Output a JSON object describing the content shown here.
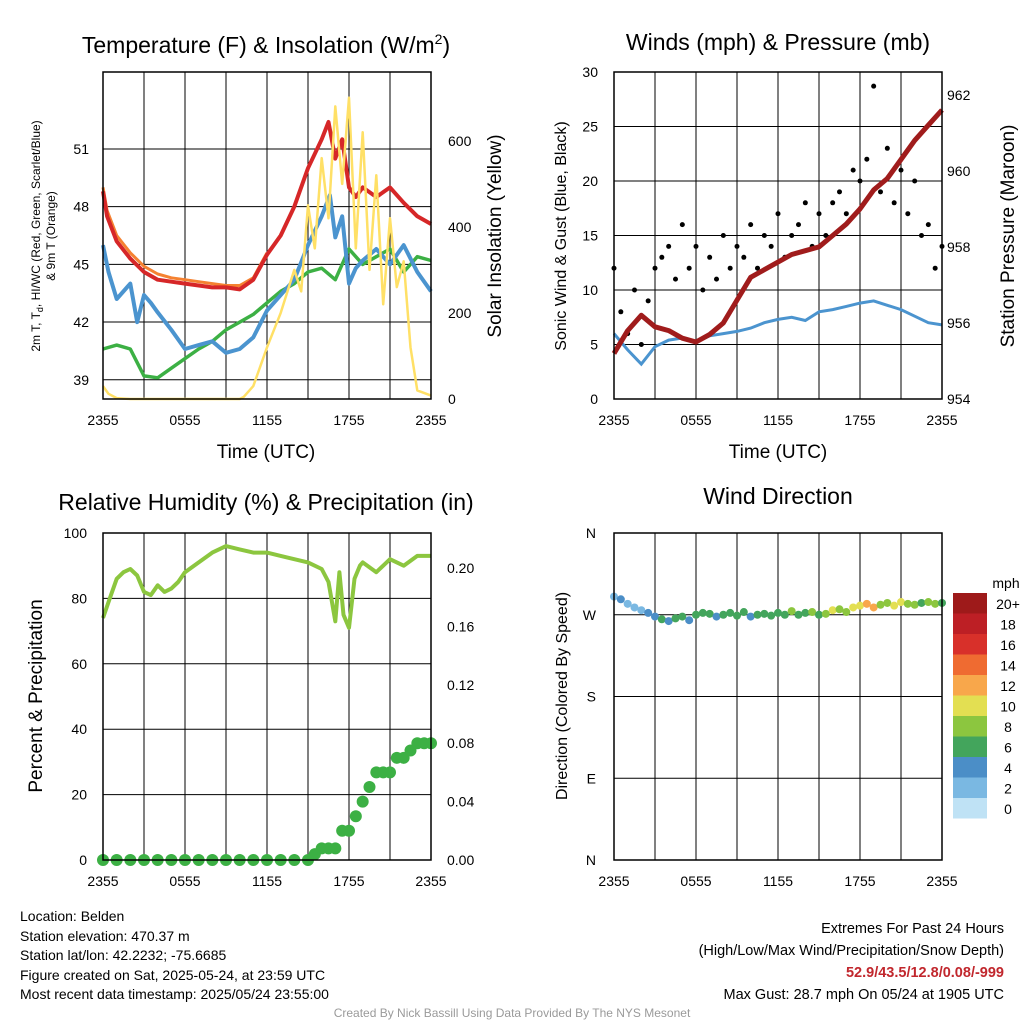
{
  "panels": {
    "temperature": {
      "title": "Temperature (F) & Insolation (W/m",
      "title_sup": "2",
      "title_close": ")",
      "xlabel": "Time (UTC)",
      "ylabel_line1": "2m T, T",
      "ylabel_sub": "d",
      "ylabel_line1_rest": ", HI/WC (Red, Green, Scarlet/Blue)",
      "ylabel_line2": "& 9m T (Orange)",
      "ylabel_right": "Solar Insolation (Yellow)"
    },
    "winds": {
      "title": "Winds (mph) & Pressure (mb)",
      "xlabel": "Time (UTC)",
      "ylabel": "Sonic Wind & Gust (Blue, Black)",
      "ylabel_right": "Station Pressure (Maroon)"
    },
    "humidity": {
      "title": "Relative Humidity (%) & Precipitation (in)",
      "ylabel": "Percent & Precipitation"
    },
    "direction": {
      "title": "Wind Direction",
      "ylabel": "Direction (Colored By Speed)",
      "legend_title": "mph"
    }
  },
  "chart_data": [
    {
      "id": "temperature",
      "type": "line",
      "x_tick_labels": [
        "2355",
        "0555",
        "1155",
        "1755",
        "2355"
      ],
      "x_hours_range": [
        0,
        24
      ],
      "ylim": [
        38,
        55
      ],
      "y_ticks": [
        39,
        42,
        45,
        48,
        51
      ],
      "y2lim": [
        0,
        760
      ],
      "y2_ticks": [
        0,
        200,
        400,
        600
      ],
      "series": [
        {
          "label": "Temperature",
          "color": "#d62728",
          "axis": "left",
          "width": 4,
          "x": [
            0,
            0.3,
            1,
            2,
            3,
            4,
            5,
            6,
            7,
            8,
            9,
            10,
            11,
            12,
            13,
            14,
            15,
            16,
            16.5,
            17,
            17.5,
            18,
            18.5,
            19,
            20,
            21,
            22,
            23,
            24
          ],
          "values": [
            48.8,
            47.5,
            46.2,
            45.3,
            44.6,
            44.2,
            44.1,
            44.0,
            43.9,
            43.8,
            43.8,
            43.7,
            44.2,
            45.5,
            46.5,
            48.0,
            50.0,
            51.5,
            52.4,
            50.5,
            51.5,
            49.0,
            48.5,
            49.0,
            48.5,
            49.0,
            48.2,
            47.5,
            47.1
          ]
        },
        {
          "label": "9m Temperature",
          "color": "#f58231",
          "axis": "left",
          "width": 3,
          "x": [
            0,
            0.3,
            1,
            2,
            3,
            4,
            5,
            6,
            7,
            8,
            9,
            10,
            11,
            12
          ],
          "values": [
            49.0,
            47.8,
            46.5,
            45.6,
            44.9,
            44.5,
            44.3,
            44.2,
            44.1,
            44.0,
            43.9,
            43.9,
            44.3,
            45.6
          ]
        },
        {
          "label": "Dew Point",
          "color": "#3cb044",
          "axis": "left",
          "width": 3.5,
          "x": [
            0,
            1,
            2,
            3,
            4,
            5,
            6,
            7,
            8,
            9,
            10,
            11,
            12,
            13,
            14,
            15,
            16,
            17,
            18,
            19,
            20,
            21,
            22,
            23,
            24
          ],
          "values": [
            40.6,
            40.8,
            40.6,
            39.2,
            39.1,
            39.6,
            40.1,
            40.6,
            41.0,
            41.6,
            42.0,
            42.4,
            43.0,
            43.6,
            44.0,
            44.6,
            44.8,
            44.2,
            45.8,
            45.0,
            45.4,
            45.8,
            44.6,
            45.4,
            45.2
          ]
        },
        {
          "label": "Heat Index / Wind Chill",
          "color": "#4b94cf",
          "axis": "left",
          "width": 4,
          "x": [
            0,
            0.4,
            1,
            2,
            2.5,
            3,
            3.5,
            4,
            5,
            6,
            7,
            8,
            9,
            10,
            11,
            12,
            13,
            14,
            15,
            16,
            16.6,
            17,
            17.5,
            18,
            18.5,
            19,
            20,
            21,
            22,
            23,
            24
          ],
          "values": [
            46.0,
            44.6,
            43.2,
            44.0,
            42.0,
            43.4,
            43.0,
            42.5,
            41.6,
            40.6,
            40.8,
            41.0,
            40.4,
            40.6,
            41.2,
            42.6,
            43.4,
            44.2,
            46.0,
            47.5,
            48.6,
            46.4,
            47.5,
            44.0,
            44.8,
            45.2,
            45.8,
            45.0,
            46.0,
            44.6,
            43.6
          ]
        },
        {
          "label": "Solar Insolation",
          "color": "#ffe066",
          "axis": "right",
          "width": 2.5,
          "x": [
            0,
            0.4,
            1,
            2,
            3,
            4,
            5,
            6,
            7,
            8,
            9,
            10,
            10.3,
            11,
            12,
            13,
            14,
            14.5,
            15,
            15.5,
            16,
            16.5,
            17,
            17.5,
            18,
            18.5,
            19,
            19.5,
            20,
            20.5,
            21,
            21.5,
            22,
            22.5,
            23,
            24
          ],
          "values": [
            30,
            12,
            2,
            0,
            0,
            0,
            0,
            0,
            0,
            0,
            0,
            0,
            5,
            30,
            120,
            200,
            300,
            250,
            450,
            350,
            560,
            420,
            680,
            500,
            700,
            350,
            620,
            300,
            520,
            220,
            420,
            260,
            320,
            120,
            20,
            8
          ]
        }
      ]
    },
    {
      "id": "winds",
      "type": "line",
      "x_tick_labels": [
        "2355",
        "0555",
        "1155",
        "1755",
        "2355"
      ],
      "x_hours_range": [
        0,
        24
      ],
      "ylim": [
        0,
        30
      ],
      "y_ticks": [
        0,
        5,
        10,
        15,
        20,
        25,
        30
      ],
      "y2lim": [
        954,
        962.6
      ],
      "y2_ticks": [
        954,
        956,
        958,
        960,
        962
      ],
      "series": [
        {
          "label": "Sonic Wind",
          "color": "#4b94cf",
          "axis": "left",
          "width": 3,
          "x": [
            0,
            1,
            2,
            3,
            4,
            5,
            6,
            7,
            8,
            9,
            10,
            11,
            12,
            13,
            14,
            15,
            16,
            17,
            18,
            19,
            20,
            21,
            22,
            23,
            24
          ],
          "values": [
            6.0,
            4.5,
            3.2,
            4.8,
            5.4,
            5.6,
            5.2,
            5.8,
            6.0,
            6.2,
            6.5,
            7.0,
            7.3,
            7.5,
            7.2,
            8.0,
            8.2,
            8.5,
            8.8,
            9.0,
            8.6,
            8.2,
            7.6,
            7.0,
            6.8
          ]
        },
        {
          "label": "Gust",
          "color": "#000000",
          "axis": "left",
          "style": "points",
          "x": [
            0,
            0.5,
            1,
            1.5,
            2,
            2.5,
            3,
            3.5,
            4,
            4.5,
            5,
            5.5,
            6,
            6.5,
            7,
            7.5,
            8,
            8.5,
            9,
            9.5,
            10,
            10.5,
            11,
            11.5,
            12,
            12.5,
            13,
            13.5,
            14,
            14.5,
            15,
            15.5,
            16,
            16.5,
            17,
            17.5,
            18,
            18.5,
            19,
            19.5,
            20,
            20.5,
            21,
            21.5,
            22,
            22.5,
            23,
            23.5,
            24
          ],
          "values": [
            12,
            8,
            6,
            10,
            5,
            9,
            12,
            13,
            14,
            11,
            16,
            12,
            14,
            10,
            13,
            11,
            15,
            12,
            14,
            13,
            16,
            12,
            15,
            14,
            17,
            13,
            15,
            16,
            18,
            14,
            17,
            15,
            18,
            19,
            17,
            21,
            20,
            22,
            28.7,
            19,
            23,
            18,
            21,
            17,
            20,
            15,
            16,
            12,
            14
          ]
        },
        {
          "label": "Station Pressure",
          "color": "#a01c1c",
          "axis": "right",
          "width": 5,
          "x": [
            0,
            1,
            2,
            3,
            4,
            5,
            6,
            7,
            8,
            9,
            10,
            11,
            12,
            13,
            14,
            15,
            16,
            17,
            18,
            19,
            20,
            21,
            22,
            23,
            24
          ],
          "values": [
            955.2,
            955.8,
            956.2,
            955.9,
            955.8,
            955.6,
            955.5,
            955.7,
            956.0,
            956.6,
            957.2,
            957.4,
            957.6,
            957.8,
            957.9,
            958.0,
            958.3,
            958.6,
            959.0,
            959.5,
            959.8,
            960.3,
            960.8,
            961.2,
            961.6
          ]
        }
      ]
    },
    {
      "id": "humidity",
      "type": "line",
      "x_tick_labels": [
        "2355",
        "0555",
        "1155",
        "1755",
        "2355"
      ],
      "x_hours_range": [
        0,
        24
      ],
      "ylim": [
        0,
        100
      ],
      "y_ticks": [
        0,
        20,
        40,
        60,
        80,
        100
      ],
      "y2lim": [
        0,
        0.224
      ],
      "y2_ticks": [
        "0.00",
        "0.04",
        "0.08",
        "0.12",
        "0.16",
        "0.20"
      ],
      "series": [
        {
          "label": "Relative Humidity",
          "color": "#8cc63f",
          "axis": "left",
          "width": 4,
          "x": [
            0,
            0.5,
            1,
            1.5,
            2,
            2.5,
            3,
            3.5,
            4,
            4.5,
            5,
            5.5,
            6,
            7,
            8,
            9,
            10,
            11,
            12,
            13,
            14,
            15,
            16,
            16.5,
            17,
            17.3,
            17.6,
            18,
            18.4,
            18.8,
            19,
            20,
            21,
            22,
            23,
            24
          ],
          "values": [
            74,
            80,
            86,
            88,
            89,
            87,
            82,
            81,
            84,
            82,
            83,
            85,
            88,
            91,
            94,
            96,
            95,
            94,
            94,
            93,
            92,
            91,
            89,
            85,
            73,
            88,
            75,
            71,
            86,
            90,
            91,
            88,
            92,
            90,
            93,
            93
          ]
        },
        {
          "label": "Precipitation",
          "color": "#3cb044",
          "axis": "right",
          "style": "points",
          "x": [
            0,
            1,
            2,
            3,
            4,
            5,
            6,
            7,
            8,
            9,
            10,
            11,
            12,
            13,
            14,
            15,
            15.5,
            16,
            16.5,
            17,
            17.5,
            18,
            18.5,
            19,
            19.5,
            20,
            20.5,
            21,
            21.5,
            22,
            22.5,
            23,
            23.5,
            24
          ],
          "values": [
            0,
            0,
            0,
            0,
            0,
            0,
            0,
            0,
            0,
            0,
            0,
            0,
            0,
            0,
            0,
            0,
            0.004,
            0.008,
            0.008,
            0.008,
            0.02,
            0.02,
            0.03,
            0.04,
            0.05,
            0.06,
            0.06,
            0.06,
            0.07,
            0.07,
            0.075,
            0.08,
            0.08,
            0.08
          ]
        }
      ]
    },
    {
      "id": "direction",
      "type": "scatter",
      "x_tick_labels": [
        "2355",
        "0555",
        "1155",
        "1755",
        "2355"
      ],
      "x_hours_range": [
        0,
        24
      ],
      "y_tick_labels": [
        "N",
        "E",
        "S",
        "W",
        "N"
      ],
      "ylim": [
        0,
        360
      ],
      "points": {
        "x": [
          0,
          0.5,
          1,
          1.5,
          2,
          2.5,
          3,
          3.5,
          4,
          4.5,
          5,
          5.5,
          6,
          6.5,
          7,
          7.5,
          8,
          8.5,
          9,
          9.5,
          10,
          10.5,
          11,
          11.5,
          12,
          12.5,
          13,
          13.5,
          14,
          14.5,
          15,
          15.5,
          16,
          16.5,
          17,
          17.5,
          18,
          18.5,
          19,
          19.5,
          20,
          20.5,
          21,
          21.5,
          22,
          22.5,
          23,
          23.5,
          24
        ],
        "direction_deg": [
          290,
          287,
          282,
          278,
          275,
          272,
          268,
          265,
          263,
          266,
          268,
          264,
          270,
          272,
          271,
          268,
          270,
          272,
          269,
          273,
          268,
          270,
          271,
          269,
          272,
          270,
          274,
          270,
          272,
          273,
          270,
          271,
          275,
          276,
          273,
          278,
          280,
          282,
          278,
          281,
          283,
          280,
          284,
          282,
          281,
          283,
          284,
          282,
          283
        ],
        "speed_mph": [
          3,
          4,
          3,
          2,
          3,
          4,
          5,
          6,
          5,
          6,
          7,
          5,
          6,
          7,
          6,
          5,
          7,
          6,
          6,
          7,
          5,
          6,
          7,
          6,
          7,
          6,
          8,
          7,
          6,
          8,
          7,
          9,
          10,
          8,
          9,
          11,
          10,
          12,
          13,
          9,
          8,
          11,
          10,
          8,
          9,
          7,
          8,
          9,
          6
        ]
      },
      "color_scale": {
        "labels": [
          "20+",
          "18",
          "16",
          "14",
          "12",
          "10",
          "8",
          "6",
          "4",
          "2",
          "0"
        ],
        "colors": [
          "#9e1a1a",
          "#bd1f25",
          "#d8302a",
          "#ef6b31",
          "#f8a74b",
          "#e3df52",
          "#8cc63f",
          "#43a55c",
          "#4b8ec7",
          "#7ab8e2",
          "#bfe2f5"
        ]
      }
    }
  ],
  "footer": {
    "location": "Location: Belden",
    "elevation": "Station elevation: 470.37 m",
    "latlon": "Station lat/lon: 42.2232; -75.6685",
    "created": "Figure created on Sat, 2025-05-24, at 23:59 UTC",
    "recent": "Most recent data timestamp: 2025/05/24 23:55:00",
    "extremes_title": "Extremes For Past 24 Hours",
    "extremes_desc": "(High/Low/Max Wind/Precipitation/Snow Depth)",
    "extremes_values": "52.9/43.5/12.8/0.08/-999",
    "max_gust": "Max Gust: 28.7 mph On 05/24 at 1905 UTC",
    "credit": "Created By Nick Bassill Using Data Provided By The NYS Mesonet"
  }
}
